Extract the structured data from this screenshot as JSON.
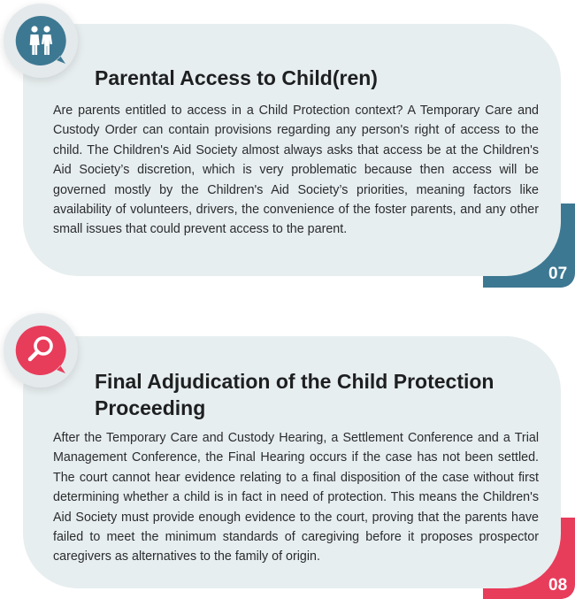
{
  "sections": [
    {
      "number": "07",
      "icon": "people-icon",
      "accent": "#3d7892",
      "title": "Parental Access to Child(ren)",
      "body": "Are parents entitled to access in a Child Protection context? A Temporary Care and Custody Order can contain provisions regarding any person's right of access to the child. The Children's Aid Society almost always asks that access be at the Children's Aid Society’s discretion, which is very problematic because then access will be governed mostly by the Children's Aid Society’s priorities, meaning factors like availability of volun­teers, drivers, the convenience of the foster parents, and any other small issues that could prevent access to the parent."
    },
    {
      "number": "08",
      "icon": "search-icon",
      "accent": "#e83c5b",
      "title": "Final Adjudication of the Child Protection Proceeding",
      "body": "After the Temporary Care and Custody Hearing, a Settlement Conference and a Trial Management Conference, the Final Hearing occurs if the case has not been settled. The court cannot hear evidence relating to a final disposition of the case without first deter­mining whether a child is in fact in need of protection. This means the Children's Aid Society must provide enough evidence to the court, proving that the parents have failed to meet the minimum standards of caregiving before it proposes prospector caregivers as alternatives to the family of origin."
    }
  ]
}
